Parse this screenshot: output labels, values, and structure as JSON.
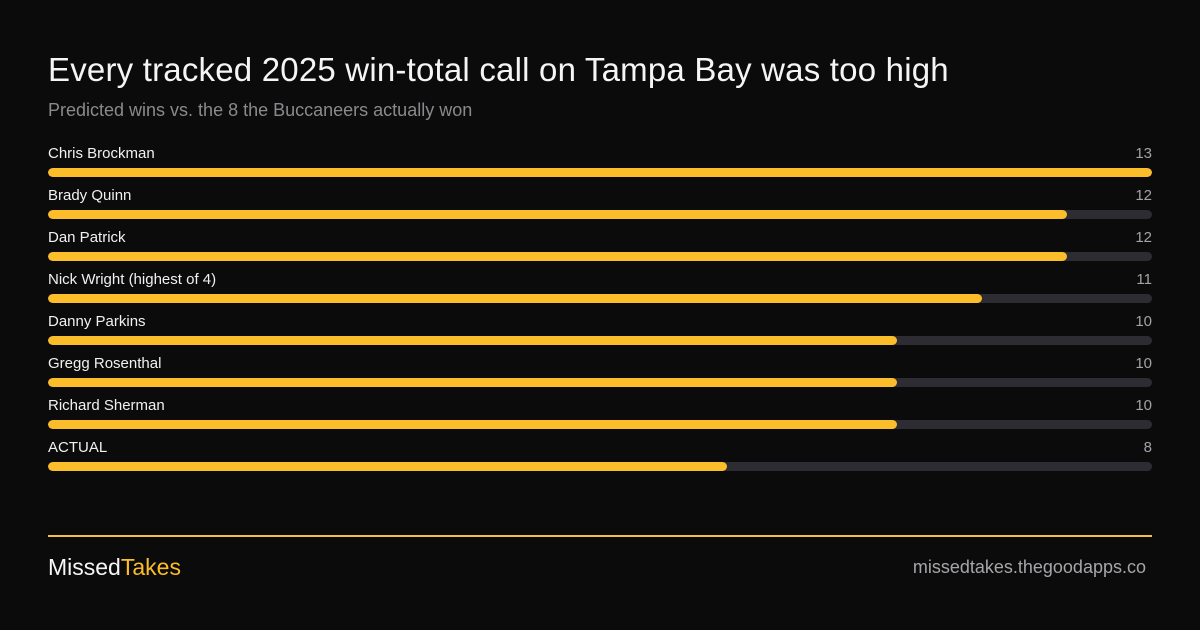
{
  "header": {
    "title": "Every tracked 2025 win-total call on Tampa Bay was too high",
    "subtitle": "Predicted wins vs. the 8 the Buccaneers actually won"
  },
  "chart_data": {
    "type": "bar",
    "orientation": "horizontal",
    "categories": [
      "Chris Brockman",
      "Brady Quinn",
      "Dan Patrick",
      "Nick Wright (highest of 4)",
      "Danny Parkins",
      "Gregg Rosenthal",
      "Richard Sherman",
      "ACTUAL"
    ],
    "values": [
      13,
      12,
      12,
      11,
      10,
      10,
      10,
      8
    ],
    "xlim": [
      0,
      13
    ],
    "grid": false,
    "legend": "none",
    "bar_color": "#fbbd2a",
    "track_color": "#2d2c32"
  },
  "footer": {
    "brand_part1": "Missed",
    "brand_part2": "Takes",
    "url": "missedtakes.thegoodapps.co"
  },
  "colors": {
    "background": "#0b0b0b",
    "accent": "#fbbd2a",
    "muted_text": "#8a8a8e"
  }
}
